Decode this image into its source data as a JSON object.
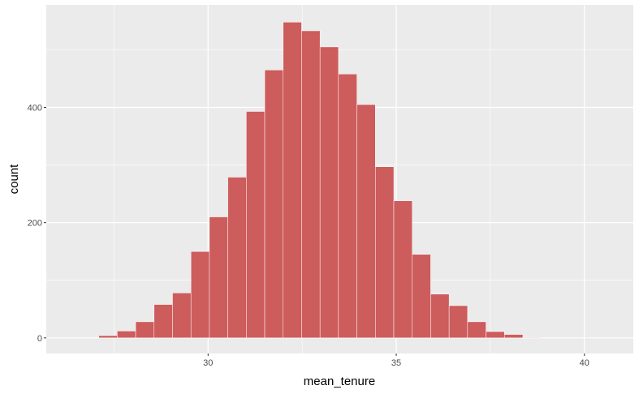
{
  "chart_data": {
    "type": "bar",
    "xlabel": "mean_tenure",
    "ylabel": "count",
    "xlim": [
      25.7,
      41.3
    ],
    "ylim": [
      -27,
      578
    ],
    "x_ticks": [
      30,
      35,
      40
    ],
    "x_tick_labels": [
      "30",
      "35",
      "40"
    ],
    "x_minor_ticks": [
      27.5,
      32.5,
      37.5
    ],
    "y_ticks": [
      0,
      200,
      400
    ],
    "y_tick_labels": [
      "0",
      "200",
      "400"
    ],
    "y_minor_ticks": [
      100,
      300,
      500
    ],
    "grid": true,
    "bin_width": 0.49,
    "bins": [
      {
        "x": 25.87,
        "count": 0
      },
      {
        "x": 26.36,
        "count": 0
      },
      {
        "x": 26.85,
        "count": 0
      },
      {
        "x": 27.34,
        "count": 4
      },
      {
        "x": 27.83,
        "count": 12
      },
      {
        "x": 28.32,
        "count": 28
      },
      {
        "x": 28.81,
        "count": 58
      },
      {
        "x": 29.3,
        "count": 78
      },
      {
        "x": 29.79,
        "count": 150
      },
      {
        "x": 30.28,
        "count": 210
      },
      {
        "x": 30.77,
        "count": 279
      },
      {
        "x": 31.26,
        "count": 393
      },
      {
        "x": 31.75,
        "count": 465
      },
      {
        "x": 32.24,
        "count": 548
      },
      {
        "x": 32.73,
        "count": 533
      },
      {
        "x": 33.22,
        "count": 505
      },
      {
        "x": 33.71,
        "count": 458
      },
      {
        "x": 34.2,
        "count": 405
      },
      {
        "x": 34.69,
        "count": 297
      },
      {
        "x": 35.18,
        "count": 238
      },
      {
        "x": 35.67,
        "count": 145
      },
      {
        "x": 36.16,
        "count": 76
      },
      {
        "x": 36.65,
        "count": 56
      },
      {
        "x": 37.14,
        "count": 28
      },
      {
        "x": 37.63,
        "count": 11
      },
      {
        "x": 38.12,
        "count": 6
      },
      {
        "x": 38.61,
        "count": 1
      },
      {
        "x": 39.1,
        "count": 0
      },
      {
        "x": 39.59,
        "count": 0
      },
      {
        "x": 40.08,
        "count": 0
      },
      {
        "x": 40.57,
        "count": 0
      }
    ],
    "colors": {
      "panel": "#ebebeb",
      "grid_major": "#ffffff",
      "bar_fill": "#cd5c5c",
      "bar_outline": "#ffffff"
    }
  }
}
